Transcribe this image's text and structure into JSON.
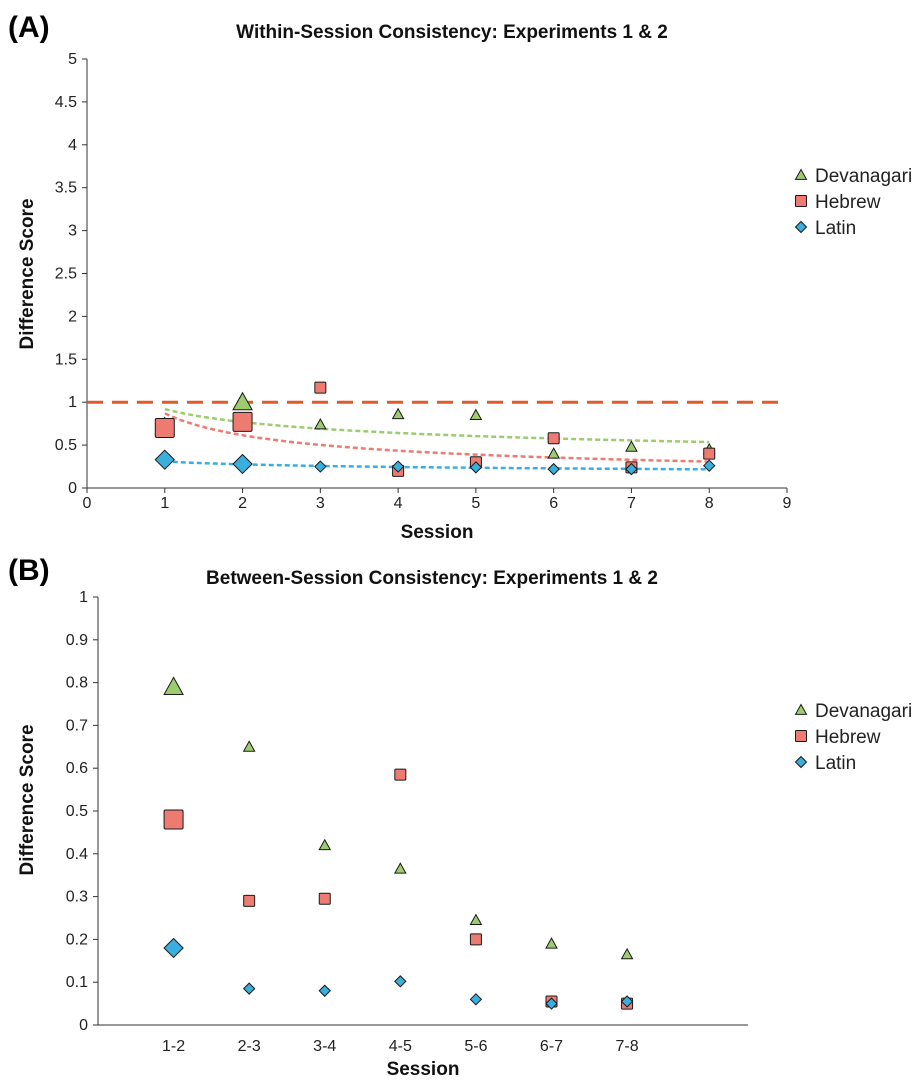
{
  "colors": {
    "devanagari": "#9ccc6e",
    "hebrew": "#ee7b72",
    "latin": "#3aaedd",
    "reference_line": "#e05a2a",
    "marker_stroke": "#1a1a1a"
  },
  "chart_data": [
    {
      "panel_label": "(A)",
      "type": "scatter",
      "title": "Within-Session Consistency: Experiments 1 & 2",
      "xlabel": "Session",
      "ylabel": "Difference Score",
      "xlim": [
        0,
        9
      ],
      "ylim": [
        0,
        5
      ],
      "x_ticks": [
        "0",
        "1",
        "2",
        "3",
        "4",
        "5",
        "6",
        "7",
        "8",
        "9"
      ],
      "y_ticks": [
        "0",
        "0.5",
        "1",
        "1.5",
        "2",
        "2.5",
        "3",
        "3.5",
        "4",
        "4.5",
        "5"
      ],
      "grid": false,
      "legend_position": "right",
      "reference_line": {
        "y": 1,
        "style": "dashed"
      },
      "series": [
        {
          "name": "Devanagari",
          "marker": "triangle",
          "x": [
            1,
            2,
            3,
            4,
            5,
            6,
            7,
            8
          ],
          "y": [
            0.71,
            1.0,
            0.74,
            0.86,
            0.85,
            0.4,
            0.48,
            0.45
          ],
          "trend": {
            "type": "power",
            "a": 0.92,
            "b": -0.26
          }
        },
        {
          "name": "Hebrew",
          "marker": "square",
          "x": [
            1,
            2,
            3,
            4,
            5,
            6,
            7,
            8
          ],
          "y": [
            0.7,
            0.77,
            1.17,
            0.2,
            0.3,
            0.58,
            0.24,
            0.4
          ],
          "trend": {
            "type": "power",
            "a": 0.87,
            "b": -0.5
          }
        },
        {
          "name": "Latin",
          "marker": "diamond",
          "x": [
            1,
            2,
            3,
            4,
            5,
            6,
            7,
            8
          ],
          "y": [
            0.33,
            0.28,
            0.25,
            0.25,
            0.24,
            0.22,
            0.22,
            0.26
          ],
          "trend": {
            "type": "power",
            "a": 0.31,
            "b": -0.17
          }
        }
      ]
    },
    {
      "panel_label": "(B)",
      "type": "scatter",
      "title": "Between-Session Consistency: Experiments 1 & 2",
      "xlabel": "Session",
      "ylabel": "Difference Score",
      "categories": [
        "1-2",
        "2-3",
        "3-4",
        "4-5",
        "5-6",
        "6-7",
        "7-8"
      ],
      "ylim": [
        0,
        1
      ],
      "y_ticks": [
        "0",
        "0.1",
        "0.2",
        "0.3",
        "0.4",
        "0.5",
        "0.6",
        "0.7",
        "0.8",
        "0.9",
        "1"
      ],
      "grid": false,
      "legend_position": "right",
      "series": [
        {
          "name": "Devanagari",
          "marker": "triangle",
          "values": [
            0.79,
            0.65,
            0.42,
            0.365,
            0.245,
            0.19,
            0.165
          ]
        },
        {
          "name": "Hebrew",
          "marker": "square",
          "values": [
            0.48,
            0.29,
            0.295,
            0.585,
            0.2,
            0.055,
            0.05
          ]
        },
        {
          "name": "Latin",
          "marker": "diamond",
          "values": [
            0.18,
            0.085,
            0.08,
            0.102,
            0.06,
            0.05,
            0.055
          ]
        }
      ]
    }
  ]
}
